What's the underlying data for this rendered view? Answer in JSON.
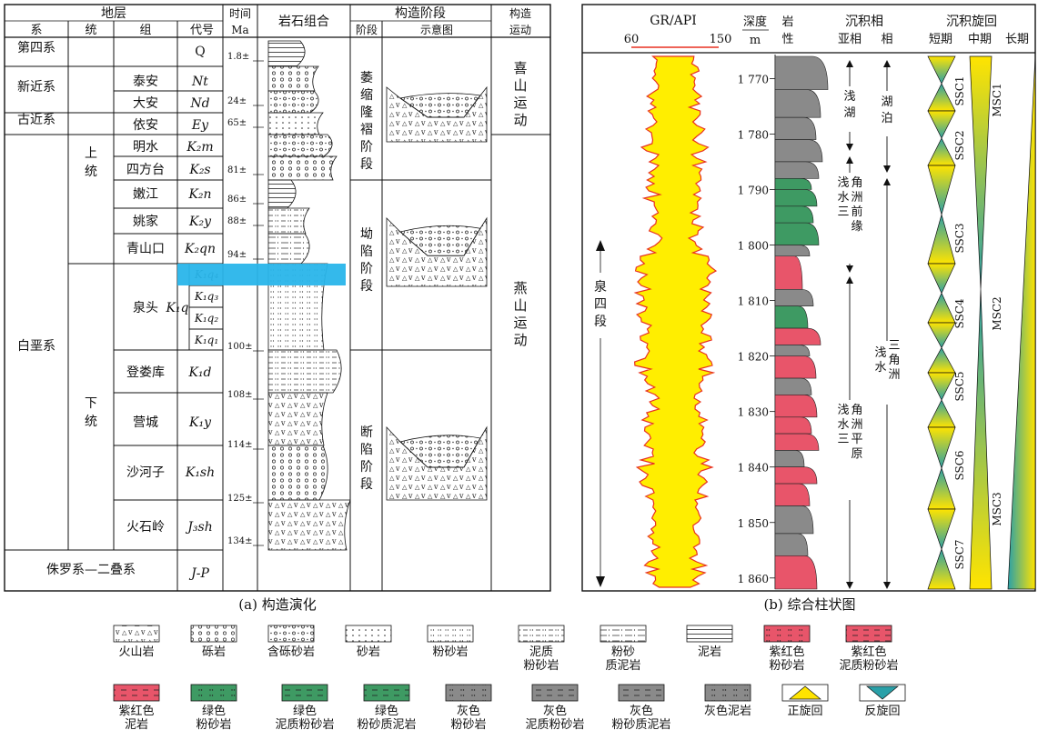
{
  "left_panel": {
    "caption": "(a) 构造演化",
    "headers": {
      "strata": "地层",
      "system": "系",
      "series": "统",
      "group": "组",
      "code": "代号",
      "time": "时间",
      "time_unit": "Ma",
      "lithology": "岩石组合",
      "tectonic_stage": "构造阶段",
      "stage": "阶段",
      "sketch": "示意图",
      "movement": "构造运动"
    },
    "systems": [
      {
        "label": "第四系"
      },
      {
        "label": "新近系"
      },
      {
        "label": "古近系"
      },
      {
        "label": "白垩系"
      },
      {
        "label": "侏罗系—二叠系"
      }
    ],
    "series": [
      {
        "label": "上统"
      },
      {
        "label": "下统"
      }
    ],
    "formations": [
      {
        "group": "",
        "code": "Q"
      },
      {
        "group": "泰安",
        "code": "Nt"
      },
      {
        "group": "大安",
        "code": "Nd"
      },
      {
        "group": "依安",
        "code": "Ey"
      },
      {
        "group": "明水",
        "code": "K₂m"
      },
      {
        "group": "四方台",
        "code": "K₂s"
      },
      {
        "group": "嫩江",
        "code": "K₂n"
      },
      {
        "group": "姚家",
        "code": "K₂y"
      },
      {
        "group": "青山口",
        "code": "K₂qn"
      },
      {
        "group": "泉头",
        "code": "K₁q"
      },
      {
        "group": "登娄库",
        "code": "K₁d"
      },
      {
        "group": "营城",
        "code": "K₁y"
      },
      {
        "group": "沙河子",
        "code": "K₁sh"
      },
      {
        "group": "火石岭",
        "code": "J₃sh"
      },
      {
        "group": "",
        "code": "J-P"
      }
    ],
    "members": [
      "K₁q₄",
      "K₁q₃",
      "K₁q₂",
      "K₁q₁"
    ],
    "ages": [
      "1.8±",
      "24±",
      "65±",
      "81±",
      "86±",
      "88±",
      "94±",
      "100±",
      "108±",
      "114±",
      "125±",
      "134±"
    ],
    "stages": [
      {
        "label": "萎缩隆褶阶段"
      },
      {
        "label": "坳陷阶段"
      },
      {
        "label": "断陷阶段"
      }
    ],
    "movements": [
      {
        "label": "喜山运动"
      },
      {
        "label": "燕山运动"
      }
    ],
    "highlight_color": "#29b5ea"
  },
  "right_panel": {
    "caption": "(b) 综合柱状图",
    "headers": {
      "gr": "GR/API",
      "gr_min": "60",
      "gr_max": "150",
      "depth": "深度",
      "depth_unit": "m",
      "lithology": "岩性",
      "facies": "沉积相",
      "subfacies": "亚相",
      "facies_col": "相",
      "cycles": "沉积旋回",
      "short": "短期",
      "medium": "中期",
      "long": "长期"
    },
    "depth_ticks": [
      "1 770",
      "1 780",
      "1 790",
      "1 800",
      "1 810",
      "1 820",
      "1 830",
      "1 840",
      "1 850",
      "1 860"
    ],
    "member_label": "泉四段",
    "subfacies_labels": [
      "浅湖",
      "浅水三角洲前缘",
      "浅水三角洲平原"
    ],
    "facies_labels": [
      "湖泊",
      "浅水三角洲"
    ],
    "ssc": [
      "SSC1",
      "SSC2",
      "SSC3",
      "SSC4",
      "SSC5",
      "SSC6",
      "SSC7"
    ],
    "msc": [
      "MSC1",
      "MSC2",
      "MSC3"
    ],
    "gr_fill": "#ffee00",
    "gr_line": "#e83020"
  },
  "legend": [
    {
      "label": "火山岩"
    },
    {
      "label": "砾岩"
    },
    {
      "label": "含砾砂岩"
    },
    {
      "label": "砂岩"
    },
    {
      "label": "粉砂岩"
    },
    {
      "label": "泥质粉砂岩"
    },
    {
      "label": "粉砂质泥岩"
    },
    {
      "label": "泥岩"
    },
    {
      "label": "紫红色粉砂岩"
    },
    {
      "label": "紫红色泥质粉砂岩"
    },
    {
      "label": "紫红色泥岩"
    },
    {
      "label": "绿色粉砂岩"
    },
    {
      "label": "绿色泥质粉砂岩"
    },
    {
      "label": "绿色粉砂质泥岩"
    },
    {
      "label": "灰色粉砂岩"
    },
    {
      "label": "灰色泥质粉砂岩"
    },
    {
      "label": "灰色粉砂质泥岩"
    },
    {
      "label": "灰色泥岩"
    },
    {
      "label": "正旋回"
    },
    {
      "label": "反旋回"
    }
  ],
  "colors": {
    "red": "#e8556a",
    "green": "#3e9a63",
    "gray": "#8a8a8a",
    "yellow": "#ffe400"
  }
}
